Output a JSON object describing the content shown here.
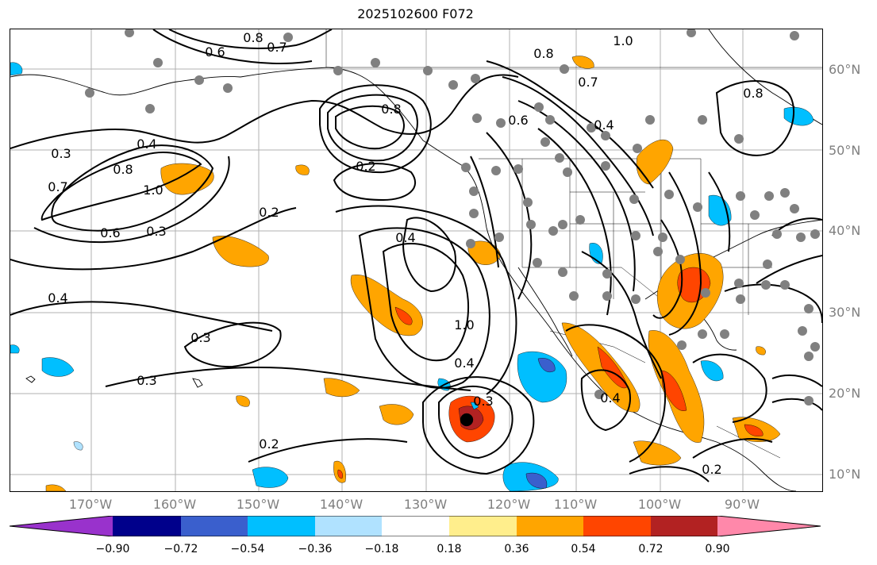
{
  "title": "2025102600 F072",
  "latitude_labels": [
    "60°N",
    "50°N",
    "40°N",
    "30°N",
    "20°N",
    "10°N"
  ],
  "longitude_labels": [
    "170°W",
    "160°W",
    "150°W",
    "140°W",
    "130°W",
    "120°W",
    "110°W",
    "100°W",
    "90°W"
  ],
  "contour_labels": [
    "0.8",
    "0.7",
    "0.6",
    "1.0",
    "0.8",
    "0.7",
    "0.6",
    "0.8",
    "0.4",
    "0.3",
    "0.4",
    "0.8",
    "0.7",
    "1.0",
    "0.6",
    "0.3",
    "0.2",
    "0.2",
    "0.4",
    "0.4",
    "0.3",
    "0.3",
    "0.2",
    "0.4",
    "1.0",
    "0.3",
    "0.4",
    "0.2",
    "0.8"
  ],
  "colorbar": {
    "colors": [
      "#9932cc",
      "#00008b",
      "#3a5fcd",
      "#00bfff",
      "#b0e2ff",
      "#ffffff",
      "#ffee8c",
      "#ffa500",
      "#ff4500",
      "#b22222",
      "#ff88aa"
    ],
    "tick_labels": [
      "−0.90",
      "−0.72",
      "−0.54",
      "−0.36",
      "−0.18",
      "0.18",
      "0.36",
      "0.54",
      "0.72",
      "0.90"
    ]
  }
}
